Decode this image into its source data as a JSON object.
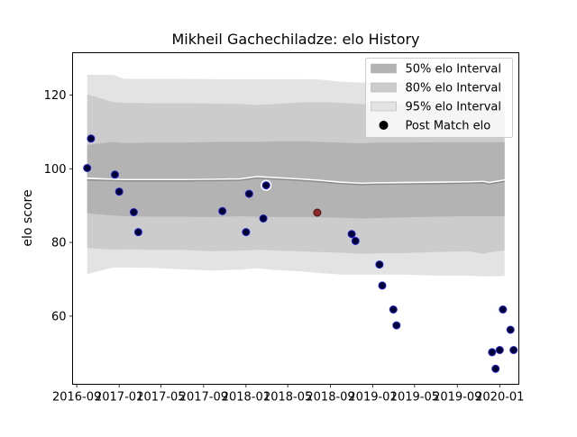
{
  "chart_data": {
    "type": "line",
    "title": "Mikheil Gachechiladze: elo History",
    "xlabel": "",
    "ylabel": "elo score",
    "x_axis": {
      "type": "date",
      "range": [
        "2016-08-20",
        "2020-02-25"
      ]
    },
    "ylim": [
      41.5,
      131.5
    ],
    "x_ticks": [
      "2016-09",
      "2017-01",
      "2017-05",
      "2017-09",
      "2018-01",
      "2018-05",
      "2018-09",
      "2019-01",
      "2019-05",
      "2019-09",
      "2020-01"
    ],
    "y_ticks": [
      60,
      80,
      100,
      120
    ],
    "grid": false,
    "legend_position": "top-right",
    "legend": [
      {
        "label": "50% elo Interval",
        "kind": "patch",
        "color": "#b3b3b3"
      },
      {
        "label": "80% elo Interval",
        "kind": "patch",
        "color": "#cccccc"
      },
      {
        "label": "95% elo Interval",
        "kind": "patch",
        "color": "#e3e3e3"
      },
      {
        "label": "Post Match elo",
        "kind": "marker",
        "color": "#000000"
      }
    ],
    "band_series": {
      "dates": [
        "2016-10-01",
        "2016-12-15",
        "2017-01-15",
        "2017-04-01",
        "2017-07-01",
        "2017-10-01",
        "2017-12-15",
        "2018-02-01",
        "2018-04-01",
        "2018-06-01",
        "2018-08-01",
        "2018-10-01",
        "2018-12-01",
        "2019-01-01",
        "2019-04-01",
        "2019-07-01",
        "2019-10-01",
        "2019-11-15",
        "2019-12-01",
        "2020-01-15"
      ],
      "p50_upper": [
        106.5,
        107.3,
        107.0,
        107.1,
        107.1,
        107.3,
        107.3,
        107.3,
        107.4,
        107.5,
        107.3,
        107.1,
        106.9,
        107.1,
        107.1,
        107.2,
        107.2,
        107.2,
        107.2,
        107.2
      ],
      "p50_lower": [
        87.9,
        87.3,
        87.1,
        87.0,
        87.0,
        86.9,
        87.1,
        87.0,
        86.9,
        86.9,
        86.8,
        86.7,
        86.5,
        86.6,
        86.8,
        87.0,
        87.1,
        87.1,
        87.1,
        87.1
      ],
      "p80_upper": [
        120.2,
        118.1,
        117.9,
        117.8,
        117.8,
        117.7,
        117.6,
        117.3,
        117.6,
        118.0,
        118.1,
        117.9,
        117.5,
        117.6,
        117.5,
        117.3,
        116.7,
        116.7,
        116.7,
        116.7
      ],
      "p80_lower": [
        78.5,
        78.0,
        78.1,
        78.0,
        78.0,
        77.6,
        77.8,
        78.0,
        77.8,
        77.6,
        77.4,
        77.2,
        76.9,
        77.0,
        77.1,
        77.4,
        77.6,
        76.9,
        77.3,
        77.8
      ],
      "p95_upper": [
        125.5,
        125.5,
        124.4,
        124.4,
        124.4,
        124.3,
        124.3,
        124.3,
        124.3,
        124.3,
        124.2,
        123.6,
        123.4,
        123.4,
        123.4,
        123.3,
        123.3,
        123.2,
        123.1,
        123.0
      ],
      "p95_lower": [
        71.4,
        73.2,
        73.2,
        73.1,
        72.7,
        72.4,
        72.6,
        73.0,
        72.5,
        72.2,
        71.7,
        71.3,
        71.3,
        71.3,
        71.3,
        71.0,
        71.0,
        70.8,
        70.8,
        70.9
      ],
      "mean": [
        97.0,
        96.8,
        96.7,
        96.7,
        96.7,
        96.8,
        96.9,
        97.5,
        97.2,
        96.9,
        96.5,
        96.0,
        95.7,
        95.8,
        95.9,
        96.0,
        96.1,
        96.2,
        95.9,
        96.6
      ],
      "mean_upper_edge": [
        97.4,
        97.1,
        97.0,
        97.0,
        97.0,
        97.1,
        97.2,
        97.8,
        97.5,
        97.2,
        96.8,
        96.3,
        96.0,
        96.1,
        96.2,
        96.3,
        96.4,
        96.5,
        96.2,
        96.9
      ]
    },
    "post_match_elo": [
      {
        "date": "2016-10-01",
        "elo": 100.2
      },
      {
        "date": "2016-10-12",
        "elo": 108.2
      },
      {
        "date": "2016-12-20",
        "elo": 98.4
      },
      {
        "date": "2017-01-01",
        "elo": 93.8
      },
      {
        "date": "2017-02-12",
        "elo": 88.2
      },
      {
        "date": "2017-02-25",
        "elo": 82.8
      },
      {
        "date": "2017-10-25",
        "elo": 88.5
      },
      {
        "date": "2018-01-01",
        "elo": 82.8
      },
      {
        "date": "2018-01-10",
        "elo": 93.2
      },
      {
        "date": "2018-02-20",
        "elo": 86.5
      },
      {
        "date": "2018-02-28",
        "elo": 95.5,
        "highlight": true
      },
      {
        "date": "2018-07-25",
        "elo": 88.1,
        "color": "#8b2a2a"
      },
      {
        "date": "2018-11-01",
        "elo": 82.3
      },
      {
        "date": "2018-11-12",
        "elo": 80.4
      },
      {
        "date": "2019-01-20",
        "elo": 74.0
      },
      {
        "date": "2019-01-28",
        "elo": 68.3
      },
      {
        "date": "2019-03-01",
        "elo": 61.8
      },
      {
        "date": "2019-03-10",
        "elo": 57.5
      },
      {
        "date": "2019-12-10",
        "elo": 50.2
      },
      {
        "date": "2019-12-20",
        "elo": 45.7
      },
      {
        "date": "2020-01-01",
        "elo": 50.8
      },
      {
        "date": "2020-01-10",
        "elo": 61.8
      },
      {
        "date": "2020-02-01",
        "elo": 56.3
      },
      {
        "date": "2020-02-10",
        "elo": 50.8
      }
    ],
    "colors": {
      "band_50": "#b3b3b3",
      "band_80": "#cccccc",
      "band_95": "#e3e3e3",
      "mean_line": "#8c8c8c",
      "mean_edge": "#ffffff",
      "marker_fill": "#000033",
      "marker_edge": "#1f1fcc"
    }
  }
}
